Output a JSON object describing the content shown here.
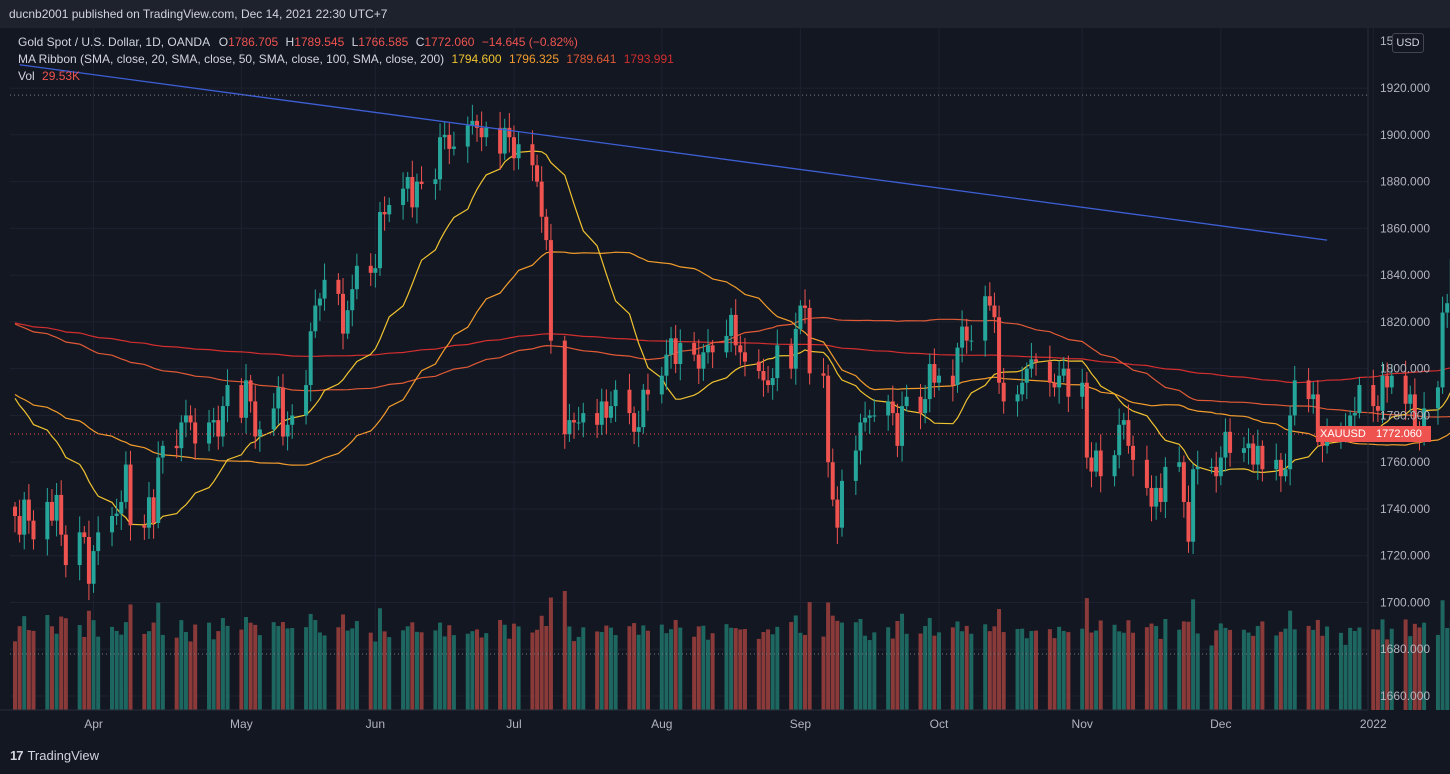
{
  "header": {
    "published_by": "ducnb2001 published on TradingView.com, Dec 14, 2021 22:30 UTC+7"
  },
  "legend": {
    "line1": {
      "symbol": "Gold Spot / U.S. Dollar, 1D, OANDA",
      "o_label": "O",
      "o": "1786.705",
      "h_label": "H",
      "h": "1789.545",
      "l_label": "L",
      "l": "1766.585",
      "c_label": "C",
      "c": "1772.060",
      "change": "−14.645 (−0.82%)"
    },
    "line2": {
      "label": "MA Ribbon (SMA, close, 20, SMA, close, 50, SMA, close, 100, SMA, close, 200)",
      "ma20": "1794.600",
      "ma50": "1796.325",
      "ma100": "1789.641",
      "ma200": "1793.991"
    },
    "line3": {
      "label": "Vol",
      "value": "29.53K"
    }
  },
  "price_axis": {
    "currency": "USD",
    "symbol_tag": "XAUUSD",
    "last_price": "1772.060"
  },
  "footer": {
    "brand": "TradingView"
  },
  "colors": {
    "up": "#26a69a",
    "down": "#ef5350",
    "ma20": "#f0c330",
    "ma50": "#f39c2c",
    "ma100": "#e05a36",
    "ma200": "#d32f2f",
    "trendline": "#3d5fd6"
  },
  "chart_data": {
    "type": "candlestick",
    "symbol": "XAUUSD",
    "interval": "1D",
    "y_ticks": [
      "1660.000",
      "1680.000",
      "1700.000",
      "1720.000",
      "1740.000",
      "1760.000",
      "1780.000",
      "1800.000",
      "1820.000",
      "1840.000",
      "1860.000",
      "1880.000",
      "1900.000",
      "1920.000"
    ],
    "y_top_label": "15",
    "ylim": [
      1655,
      1940
    ],
    "x_ticks": [
      {
        "label": "Apr",
        "date": "2021-04-01"
      },
      {
        "label": "May",
        "date": "2021-05-03"
      },
      {
        "label": "Jun",
        "date": "2021-06-01"
      },
      {
        "label": "Jul",
        "date": "2021-07-01"
      },
      {
        "label": "Aug",
        "date": "2021-08-02"
      },
      {
        "label": "Sep",
        "date": "2021-09-01"
      },
      {
        "label": "Oct",
        "date": "2021-10-01"
      },
      {
        "label": "Nov",
        "date": "2021-11-01"
      },
      {
        "label": "Dec",
        "date": "2021-12-01"
      },
      {
        "label": "2022",
        "date": "2022-01-03"
      }
    ],
    "closes": [
      1737,
      1729,
      1744,
      1735,
      1727,
      1743,
      1735,
      1746,
      1729,
      1716,
      1730,
      1728,
      1708,
      1722,
      1730,
      1737,
      1738,
      1743,
      1759,
      1733,
      1732,
      1745,
      1734,
      1762,
      1767,
      1766,
      1777,
      1780,
      1777,
      1768,
      1777,
      1778,
      1771,
      1784,
      1793,
      1779,
      1795,
      1786,
      1771,
      1774,
      1783,
      1792,
      1771,
      1776,
      1780,
      1793,
      1816,
      1827,
      1830,
      1838,
      1832,
      1815,
      1825,
      1834,
      1844,
      1841,
      1843,
      1867,
      1866,
      1870,
      1877,
      1882,
      1869,
      1880,
      1879,
      1881,
      1899,
      1900,
      1894,
      1895,
      1904,
      1906,
      1903,
      1899,
      1903,
      1892,
      1903,
      1899,
      1890,
      1896,
      1887,
      1880,
      1865,
      1855,
      1812,
      1772,
      1778,
      1777,
      1777,
      1781,
      1776,
      1786,
      1779,
      1784,
      1791,
      1781,
      1773,
      1775,
      1791,
      1789,
      1797,
      1806,
      1813,
      1802,
      1811,
      1806,
      1800,
      1807,
      1810,
      1807,
      1814,
      1823,
      1810,
      1807,
      1803,
      1799,
      1795,
      1793,
      1796,
      1810,
      1800,
      1817,
      1827,
      1826,
      1798,
      1797,
      1760,
      1744,
      1732,
      1752,
      1765,
      1777,
      1779,
      1780,
      1780,
      1786,
      1781,
      1767,
      1784,
      1788,
      1781,
      1787,
      1802,
      1794,
      1797,
      1793,
      1809,
      1818,
      1812,
      1812,
      1831,
      1827,
      1822,
      1794,
      1786,
      1789,
      1794,
      1800,
      1804,
      1803,
      1794,
      1792,
      1797,
      1800,
      1788,
      1794,
      1762,
      1756,
      1765,
      1754,
      1763,
      1776,
      1778,
      1767,
      1761,
      1749,
      1741,
      1749,
      1743,
      1758,
      1760,
      1743,
      1726,
      1757,
      1758,
      1758,
      1754,
      1762,
      1773,
      1764,
      1766,
      1768,
      1759,
      1767,
      1757,
      1761,
      1754,
      1757,
      1780,
      1795,
      1787,
      1789,
      1770,
      1767,
      1772,
      1774,
      1774,
      1780,
      1781,
      1793,
      1784,
      1782,
      1797,
      1792,
      1797,
      1785,
      1789,
      1775,
      1771,
      1783,
      1792,
      1824,
      1828,
      1847,
      1864,
      1869,
      1866,
      1860,
      1862,
      1866,
      1851,
      1857,
      1866,
      1858,
      1860,
      1844,
      1812,
      1800,
      1792,
      1784,
      1785,
      1789,
      1791,
      1784,
      1789,
      1793,
      1784,
      1781,
      1769,
      1785,
      1769,
      1766,
      1777,
      1770,
      1779,
      1779,
      1783,
      1773,
      1785,
      1777,
      1786,
      1772
    ],
    "date_range": [
      "2021-03-15",
      "2021-12-14"
    ],
    "trendline": {
      "from": [
        "2021-03-16",
        1930
      ],
      "to": [
        "2021-12-24",
        1855
      ]
    },
    "dotted_lines": [
      1917,
      1772.06
    ],
    "ma_periods": [
      20,
      50,
      100,
      200
    ],
    "volume": {
      "last": "29.53K"
    }
  }
}
